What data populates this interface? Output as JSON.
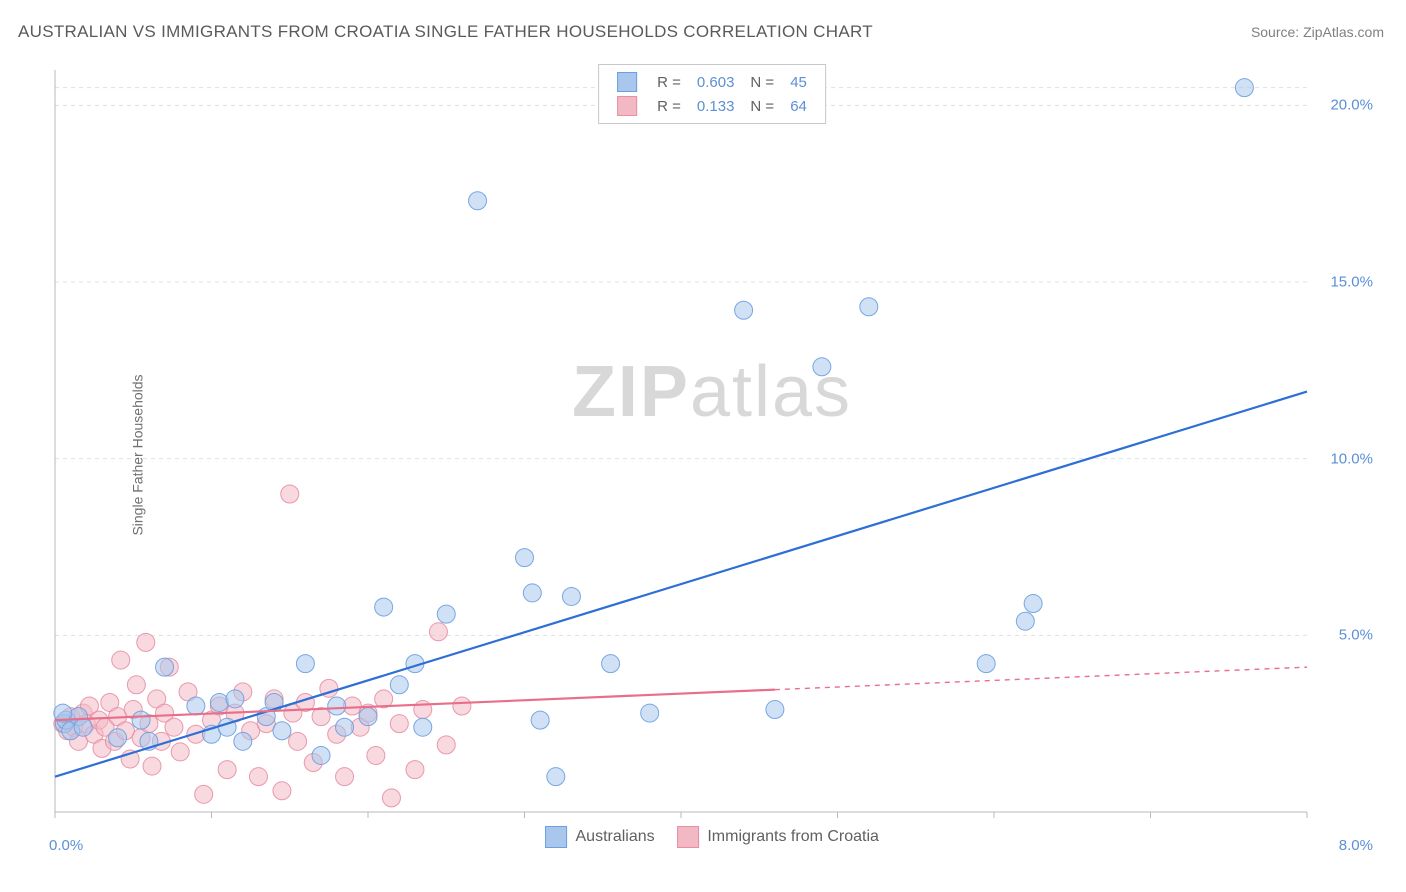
{
  "title": "AUSTRALIAN VS IMMIGRANTS FROM CROATIA SINGLE FATHER HOUSEHOLDS CORRELATION CHART",
  "source": "Source: ZipAtlas.com",
  "watermark_bold": "ZIP",
  "watermark_light": "atlas",
  "ylabel": "Single Father Households",
  "chart": {
    "type": "scatter",
    "xlim": [
      0,
      8.0
    ],
    "ylim": [
      0,
      21.0
    ],
    "xtick_left": "0.0%",
    "xtick_right": "8.0%",
    "yticks": [
      {
        "v": 5.0,
        "label": "5.0%"
      },
      {
        "v": 10.0,
        "label": "10.0%"
      },
      {
        "v": 15.0,
        "label": "15.0%"
      },
      {
        "v": 20.0,
        "label": "20.0%"
      }
    ],
    "grid_color": "#e0e0e0",
    "axis_color": "#b8b8b8",
    "background": "#ffffff",
    "marker_radius": 9,
    "marker_opacity": 0.55,
    "marker_stroke_opacity": 0.9,
    "line_width": 2.2,
    "series": [
      {
        "name": "Australians",
        "color_fill": "#a9c7ec",
        "color_stroke": "#6a9fe0",
        "color_line": "#2e6fd6",
        "R": "0.603",
        "N": "45",
        "regression": {
          "x1": 0.0,
          "y1": 1.0,
          "x2": 8.0,
          "y2": 11.9
        },
        "dash_from_x": null,
        "points": [
          [
            0.06,
            2.5
          ],
          [
            0.07,
            2.6
          ],
          [
            0.1,
            2.3
          ],
          [
            0.15,
            2.7
          ],
          [
            0.18,
            2.4
          ],
          [
            0.4,
            2.1
          ],
          [
            0.55,
            2.6
          ],
          [
            0.6,
            2.0
          ],
          [
            0.7,
            4.1
          ],
          [
            0.9,
            3.0
          ],
          [
            1.0,
            2.2
          ],
          [
            1.05,
            3.1
          ],
          [
            1.1,
            2.4
          ],
          [
            1.15,
            3.2
          ],
          [
            1.2,
            2.0
          ],
          [
            1.35,
            2.7
          ],
          [
            1.4,
            3.1
          ],
          [
            1.45,
            2.3
          ],
          [
            1.6,
            4.2
          ],
          [
            1.7,
            1.6
          ],
          [
            1.8,
            3.0
          ],
          [
            1.85,
            2.4
          ],
          [
            2.0,
            2.7
          ],
          [
            2.1,
            5.8
          ],
          [
            2.2,
            3.6
          ],
          [
            2.3,
            4.2
          ],
          [
            2.35,
            2.4
          ],
          [
            2.5,
            5.6
          ],
          [
            2.7,
            17.3
          ],
          [
            3.0,
            7.2
          ],
          [
            3.05,
            6.2
          ],
          [
            3.1,
            2.6
          ],
          [
            3.2,
            1.0
          ],
          [
            3.3,
            6.1
          ],
          [
            3.55,
            4.2
          ],
          [
            3.8,
            2.8
          ],
          [
            4.4,
            14.2
          ],
          [
            4.6,
            2.9
          ],
          [
            4.9,
            12.6
          ],
          [
            5.2,
            14.3
          ],
          [
            5.95,
            4.2
          ],
          [
            6.2,
            5.4
          ],
          [
            6.25,
            5.9
          ],
          [
            7.6,
            20.5
          ],
          [
            0.05,
            2.8
          ]
        ]
      },
      {
        "name": "Immigrants from Croatia",
        "color_fill": "#f2b9c5",
        "color_stroke": "#e78fa4",
        "color_line": "#e86e8a",
        "R": "0.133",
        "N": "64",
        "regression": {
          "x1": 0.0,
          "y1": 2.6,
          "x2": 8.0,
          "y2": 4.1
        },
        "dash_from_x": 4.6,
        "points": [
          [
            0.05,
            2.5
          ],
          [
            0.08,
            2.3
          ],
          [
            0.1,
            2.7
          ],
          [
            0.12,
            2.4
          ],
          [
            0.15,
            2.0
          ],
          [
            0.18,
            2.8
          ],
          [
            0.2,
            2.5
          ],
          [
            0.22,
            3.0
          ],
          [
            0.25,
            2.2
          ],
          [
            0.28,
            2.6
          ],
          [
            0.3,
            1.8
          ],
          [
            0.32,
            2.4
          ],
          [
            0.35,
            3.1
          ],
          [
            0.38,
            2.0
          ],
          [
            0.4,
            2.7
          ],
          [
            0.42,
            4.3
          ],
          [
            0.45,
            2.3
          ],
          [
            0.48,
            1.5
          ],
          [
            0.5,
            2.9
          ],
          [
            0.52,
            3.6
          ],
          [
            0.55,
            2.1
          ],
          [
            0.58,
            4.8
          ],
          [
            0.6,
            2.5
          ],
          [
            0.62,
            1.3
          ],
          [
            0.65,
            3.2
          ],
          [
            0.68,
            2.0
          ],
          [
            0.7,
            2.8
          ],
          [
            0.73,
            4.1
          ],
          [
            0.76,
            2.4
          ],
          [
            0.8,
            1.7
          ],
          [
            0.85,
            3.4
          ],
          [
            0.9,
            2.2
          ],
          [
            0.95,
            0.5
          ],
          [
            1.0,
            2.6
          ],
          [
            1.05,
            3.0
          ],
          [
            1.1,
            1.2
          ],
          [
            1.15,
            2.8
          ],
          [
            1.2,
            3.4
          ],
          [
            1.25,
            2.3
          ],
          [
            1.3,
            1.0
          ],
          [
            1.35,
            2.5
          ],
          [
            1.4,
            3.2
          ],
          [
            1.45,
            0.6
          ],
          [
            1.5,
            9.0
          ],
          [
            1.52,
            2.8
          ],
          [
            1.55,
            2.0
          ],
          [
            1.6,
            3.1
          ],
          [
            1.65,
            1.4
          ],
          [
            1.7,
            2.7
          ],
          [
            1.75,
            3.5
          ],
          [
            1.8,
            2.2
          ],
          [
            1.85,
            1.0
          ],
          [
            1.9,
            3.0
          ],
          [
            1.95,
            2.4
          ],
          [
            2.0,
            2.8
          ],
          [
            2.05,
            1.6
          ],
          [
            2.1,
            3.2
          ],
          [
            2.15,
            0.4
          ],
          [
            2.2,
            2.5
          ],
          [
            2.3,
            1.2
          ],
          [
            2.35,
            2.9
          ],
          [
            2.45,
            5.1
          ],
          [
            2.5,
            1.9
          ],
          [
            2.6,
            3.0
          ]
        ]
      }
    ]
  },
  "legend_top_label_R": "R =",
  "legend_top_label_N": "N =",
  "legend_bottom": [
    {
      "label": "Australians",
      "fill": "#a9c7ec",
      "stroke": "#6a9fe0"
    },
    {
      "label": "Immigrants from Croatia",
      "fill": "#f2b9c5",
      "stroke": "#e78fa4"
    }
  ]
}
